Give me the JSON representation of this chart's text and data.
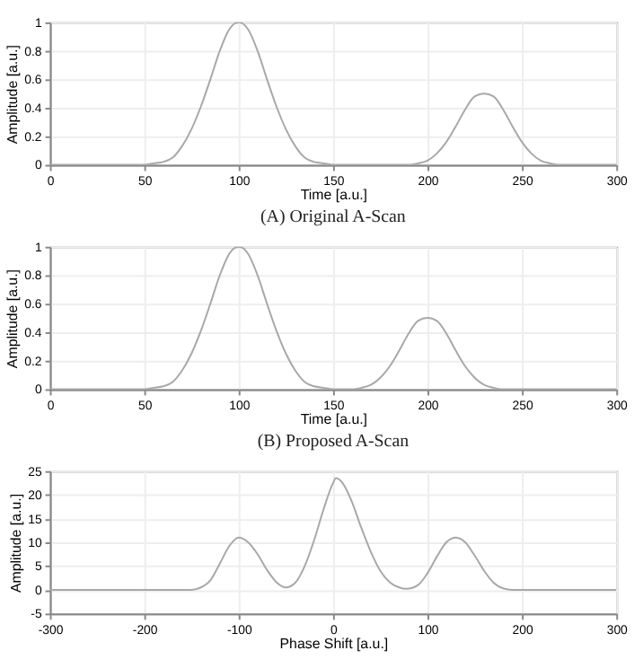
{
  "chart_data": [
    {
      "type": "line",
      "title": "(A) Original A-Scan",
      "xlabel": "Time [a.u.]",
      "ylabel": "Amplitude [a.u.]",
      "xlim": [
        0,
        300
      ],
      "xticks": [
        0,
        50,
        100,
        150,
        200,
        250,
        300
      ],
      "ylim": [
        0,
        1
      ],
      "yticks": [
        0,
        0.2,
        0.4,
        0.6,
        0.8,
        1
      ],
      "grid": true,
      "series": [
        {
          "color": "#a8a8a8",
          "x": [
            0,
            50,
            55,
            60,
            65,
            70,
            75,
            80,
            85,
            90,
            95,
            100,
            105,
            110,
            115,
            120,
            125,
            130,
            135,
            140,
            145,
            150,
            190,
            195,
            200,
            205,
            210,
            215,
            220,
            225,
            230,
            235,
            240,
            245,
            250,
            255,
            260,
            265,
            270,
            300
          ],
          "values": [
            0,
            0,
            0.01,
            0.02,
            0.05,
            0.13,
            0.25,
            0.41,
            0.6,
            0.8,
            0.95,
            1,
            0.95,
            0.8,
            0.6,
            0.41,
            0.25,
            0.13,
            0.05,
            0.02,
            0.01,
            0,
            0,
            0.01,
            0.03,
            0.08,
            0.16,
            0.27,
            0.39,
            0.48,
            0.5,
            0.48,
            0.39,
            0.27,
            0.16,
            0.08,
            0.03,
            0.01,
            0,
            0
          ]
        }
      ]
    },
    {
      "type": "line",
      "title": "(B) Proposed A-Scan",
      "xlabel": "Time [a.u.]",
      "ylabel": "Amplitude [a.u.]",
      "xlim": [
        0,
        300
      ],
      "xticks": [
        0,
        50,
        100,
        150,
        200,
        250,
        300
      ],
      "ylim": [
        0,
        1
      ],
      "yticks": [
        0,
        0.2,
        0.4,
        0.6,
        0.8,
        1
      ],
      "grid": true,
      "series": [
        {
          "color": "#a8a8a8",
          "x": [
            0,
            50,
            55,
            60,
            65,
            70,
            75,
            80,
            85,
            90,
            95,
            100,
            105,
            110,
            115,
            120,
            125,
            130,
            135,
            140,
            145,
            150,
            160,
            165,
            170,
            175,
            180,
            185,
            190,
            195,
            200,
            205,
            210,
            215,
            220,
            225,
            230,
            235,
            240,
            300
          ],
          "values": [
            0,
            0,
            0.01,
            0.02,
            0.05,
            0.13,
            0.25,
            0.41,
            0.6,
            0.8,
            0.95,
            1,
            0.95,
            0.8,
            0.6,
            0.41,
            0.25,
            0.13,
            0.05,
            0.02,
            0.01,
            0,
            0,
            0.01,
            0.03,
            0.08,
            0.16,
            0.27,
            0.39,
            0.48,
            0.5,
            0.48,
            0.39,
            0.27,
            0.16,
            0.08,
            0.03,
            0.01,
            0,
            0
          ]
        }
      ]
    },
    {
      "type": "line",
      "xlabel": "Phase Shift [a.u.]",
      "ylabel": "Amplitude [a.u.]",
      "xlim": [
        -300,
        300
      ],
      "xticks": [
        -300,
        -200,
        -100,
        0,
        100,
        200,
        300
      ],
      "ylim": [
        -5,
        25
      ],
      "yticks": [
        -5,
        0,
        5,
        10,
        15,
        20,
        25
      ],
      "grid": true,
      "series": [
        {
          "color": "#a8a8a8",
          "x": [
            -300,
            -150,
            -140,
            -130,
            -120,
            -110,
            -100,
            -90,
            -80,
            -70,
            -60,
            -50,
            -40,
            -30,
            -20,
            -10,
            0,
            3,
            10,
            20,
            30,
            40,
            50,
            60,
            70,
            78,
            90,
            100,
            110,
            120,
            130,
            140,
            150,
            160,
            170,
            180,
            190,
            300
          ],
          "values": [
            0,
            0,
            0.5,
            2,
            5.5,
            9.2,
            11,
            10,
            7.5,
            4.2,
            1.6,
            0.5,
            1.5,
            5,
            10.5,
            17,
            22.5,
            23.5,
            22.5,
            18.5,
            13,
            8,
            4,
            1.6,
            0.5,
            0.2,
            1,
            3.5,
            7,
            10,
            11,
            10,
            7.2,
            4,
            1.5,
            0.3,
            0,
            0
          ]
        }
      ]
    }
  ]
}
